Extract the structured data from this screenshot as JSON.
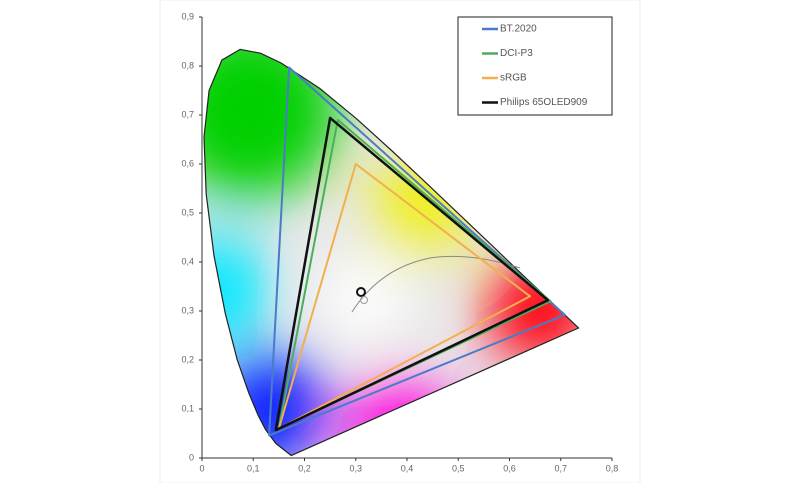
{
  "chart_data": {
    "type": "polygon",
    "xlim": [
      0,
      0.8
    ],
    "ylim": [
      0,
      0.9
    ],
    "xticks": [
      0,
      {
        "value": 0.1,
        "label": "0,1"
      },
      {
        "value": 0.2,
        "label": "0,2"
      },
      {
        "value": 0.3,
        "label": "0,3"
      },
      {
        "value": 0.4,
        "label": "0,4"
      },
      {
        "value": 0.5,
        "label": "0,5"
      },
      {
        "value": 0.6,
        "label": "0,6"
      },
      {
        "value": 0.7,
        "label": "0,7"
      },
      {
        "value": 0.8,
        "label": "0,8"
      }
    ],
    "yticks": [
      0,
      {
        "value": 0.1,
        "label": "0,1"
      },
      {
        "value": 0.2,
        "label": "0,2"
      },
      {
        "value": 0.3,
        "label": "0,3"
      },
      {
        "value": 0.4,
        "label": "0,4"
      },
      {
        "value": 0.5,
        "label": "0,5"
      },
      {
        "value": 0.6,
        "label": "0,6"
      },
      {
        "value": 0.7,
        "label": "0,7"
      },
      {
        "value": 0.8,
        "label": "0,8"
      },
      {
        "value": 0.9,
        "label": "0,9"
      }
    ],
    "legend": "upper right",
    "series": [
      {
        "name": "BT.2020",
        "color": "#4a7bc8",
        "x": [
          0.708,
          0.17,
          0.131
        ],
        "y": [
          0.292,
          0.797,
          0.046
        ]
      },
      {
        "name": "DCI-P3",
        "color": "#4cae5a",
        "x": [
          0.68,
          0.265,
          0.15
        ],
        "y": [
          0.32,
          0.69,
          0.06
        ]
      },
      {
        "name": "sRGB",
        "color": "#f0b04c",
        "x": [
          0.64,
          0.3,
          0.15
        ],
        "y": [
          0.33,
          0.6,
          0.06
        ]
      },
      {
        "name": "Philips 65OLED909",
        "color": "#111111",
        "x": [
          0.675,
          0.25,
          0.144
        ],
        "y": [
          0.322,
          0.694,
          0.057
        ]
      }
    ]
  }
}
